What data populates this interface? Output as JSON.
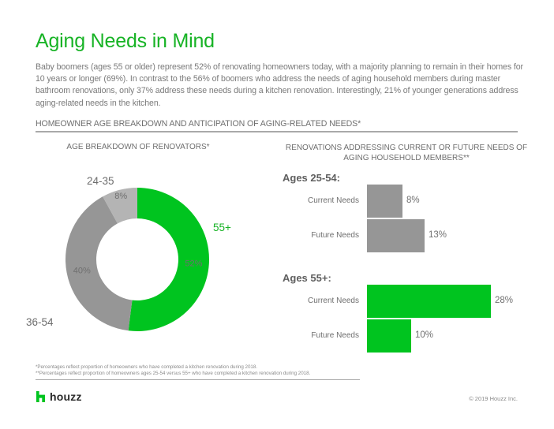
{
  "title": "Aging Needs in Mind",
  "intro": "Baby boomers (ages 55 or older) represent 52% of renovating homeowners today, with a majority planning to remain in their homes for 10 years or longer (69%). In contrast to the 56% of boomers who address the needs of aging household members during master bathroom renovations, only 37% address these needs during a kitchen renovation. Interestingly, 21% of younger generations address aging-related needs in the kitchen.",
  "section_heading": "HOMEOWNER AGE BREAKDOWN AND ANTICIPATION OF AGING-RELATED NEEDS*",
  "colors": {
    "brand_green": "#00c41f",
    "title_green": "#17b325",
    "gray_dark": "#969696",
    "gray_light": "#b4b4b4"
  },
  "chart_data": [
    {
      "type": "pie",
      "variant": "donut",
      "title": "AGE BREAKDOWN OF RENOVATORS*",
      "categories": [
        "55+",
        "36-54",
        "24-35"
      ],
      "values": [
        52,
        40,
        8
      ],
      "value_labels": [
        "52%",
        "40%",
        "8%"
      ],
      "colors": [
        "#00c41f",
        "#969696",
        "#b4b4b4"
      ],
      "label_colors": [
        "#17b325",
        "#6e6e6e",
        "#6e6e6e"
      ],
      "unit": "%"
    },
    {
      "type": "bar",
      "orientation": "horizontal",
      "title": "RENOVATIONS ADDRESSING CURRENT OR FUTURE NEEDS OF AGING HOUSEHOLD MEMBERS**",
      "groups": [
        {
          "name": "Ages 25-54:",
          "color": "#969696",
          "categories": [
            "Current Needs",
            "Future Needs"
          ],
          "values": [
            8,
            13
          ],
          "value_labels": [
            "8%",
            "13%"
          ]
        },
        {
          "name": "Ages 55+:",
          "color": "#00c41f",
          "categories": [
            "Current Needs",
            "Future Needs"
          ],
          "values": [
            28,
            10
          ],
          "value_labels": [
            "28%",
            "10%"
          ]
        }
      ],
      "unit": "%",
      "xlim": [
        0,
        30
      ]
    }
  ],
  "footnotes": [
    "*Percentages reflect proportion of homeowners who have completed a kitchen renovation during 2018.",
    "**Percentages reflect proportion of homeowners ages 25-54 versus 55+ who have completed a kitchen renovation during 2018."
  ],
  "footer": {
    "logo_text": "houzz",
    "logo_icon": "houzz-h-icon",
    "copyright": "© 2019 Houzz Inc."
  }
}
